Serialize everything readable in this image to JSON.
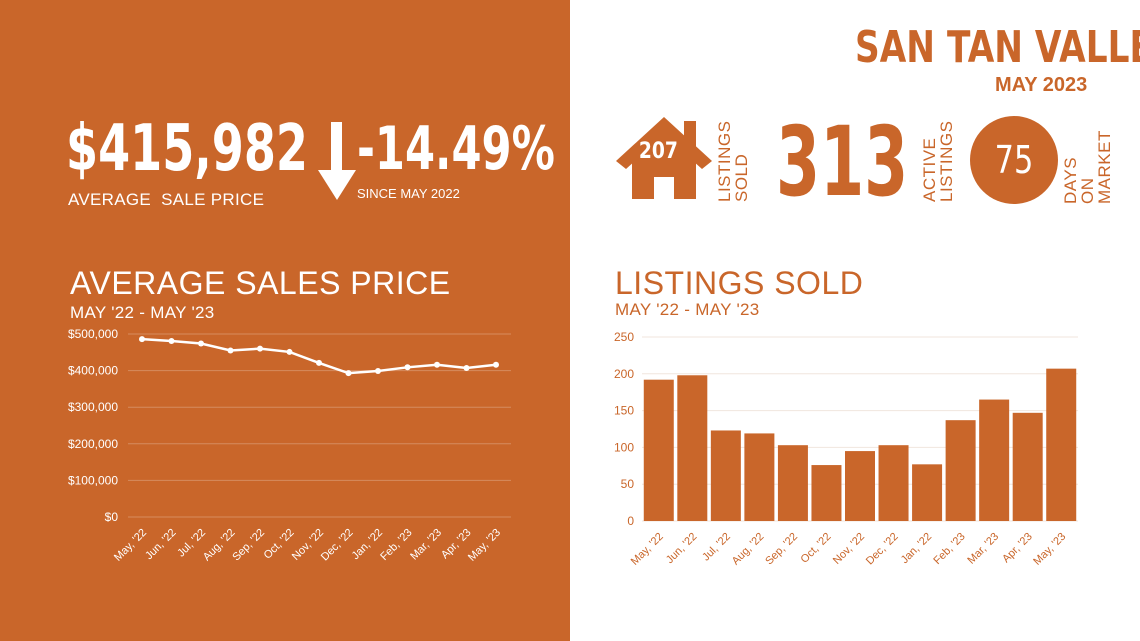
{
  "header": {
    "city": "SAN TAN VALLEY",
    "date": "MAY 2023"
  },
  "stats": {
    "avg_sale_price": "$415,982",
    "avg_sale_price_label": "AVERAGE  SALE PRICE",
    "change": "-14.49%",
    "change_label": "SINCE MAY 2022",
    "listings_sold": "207",
    "listings_sold_label": [
      "LISTINGS",
      "SOLD"
    ],
    "active_listings": "313",
    "active_listings_label": [
      "ACTIVE",
      "LISTINGS"
    ],
    "days_on_market": "75",
    "days_on_market_label": [
      "DAYS ON",
      "MARKET"
    ]
  },
  "colors": {
    "accent": "#c9662a",
    "white": "#ffffff"
  },
  "icons": {
    "down_arrow": "arrow-down-icon",
    "house": "house-icon"
  },
  "chart_data": [
    {
      "type": "line",
      "title": "AVERAGE SALES PRICE",
      "subtitle": "MAY '22 - MAY '23",
      "categories": [
        "May, '22",
        "Jun, '22",
        "Jul, '22",
        "Aug, '22",
        "Sep, '22",
        "Oct, '22",
        "Nov, '22",
        "Dec, '22",
        "Jan, '22",
        "Feb, '23",
        "Mar, '23",
        "Apr, '23",
        "May, '23"
      ],
      "values": [
        486000,
        481000,
        474000,
        455000,
        460000,
        451000,
        421000,
        393000,
        399000,
        409000,
        416000,
        407000,
        416000
      ],
      "y_ticks": [
        "$0",
        "$100,000",
        "$200,000",
        "$300,000",
        "$400,000",
        "$500,000"
      ],
      "ylim": [
        0,
        500000
      ],
      "grid": true
    },
    {
      "type": "bar",
      "title": "LISTINGS SOLD",
      "subtitle": "MAY '22 - MAY '23",
      "categories": [
        "May, '22",
        "Jun, '22",
        "Jul, '22",
        "Aug, '22",
        "Sep, '22",
        "Oct, '22",
        "Nov, '22",
        "Dec, '22",
        "Jan, '22",
        "Feb, '23",
        "Mar, '23",
        "Apr, '23",
        "May, '23"
      ],
      "values": [
        192,
        198,
        123,
        119,
        103,
        76,
        95,
        103,
        77,
        137,
        165,
        147,
        207
      ],
      "y_ticks": [
        "0",
        "50",
        "100",
        "150",
        "200",
        "250"
      ],
      "ylim": [
        0,
        250
      ],
      "grid": true
    }
  ]
}
